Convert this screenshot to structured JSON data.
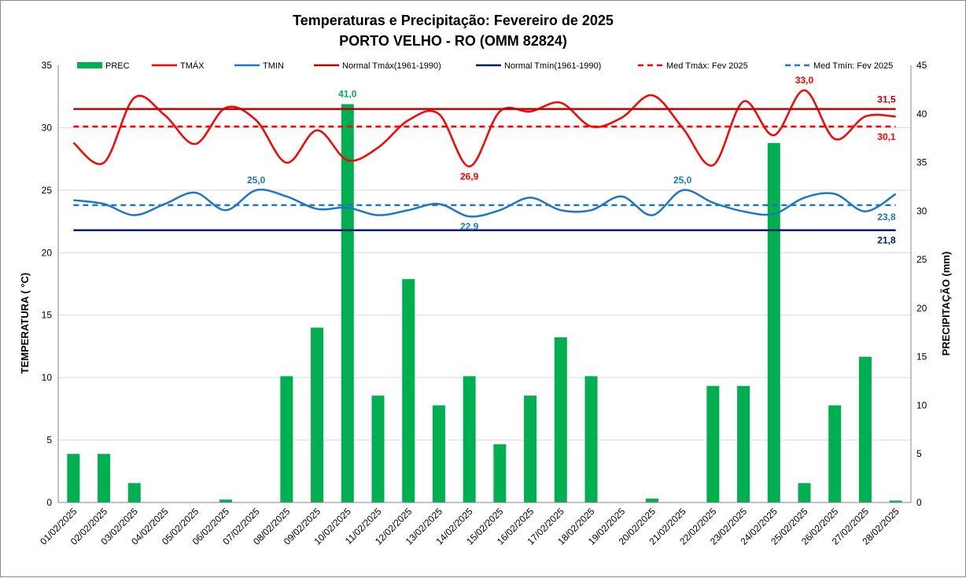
{
  "colors": {
    "prec": "#00b050",
    "tmax": "#ff0000",
    "tmin": "#1f77c2",
    "normal_tmax": "#c00000",
    "normal_tmin": "#002060",
    "med_tmax": "#ff0000",
    "med_tmin": "#1f77c2",
    "grid": "#d9d9d9"
  },
  "chart_data": {
    "type": "bar+line",
    "title": "Temperaturas  e Precipitação: Fevereiro de 2025",
    "subtitle": "PORTO  VELHO - RO (OMM 82824)",
    "ylabel": "TEMPERATURA  ( °C)",
    "y2label": "PRECIPITAÇÃO (mm)",
    "ylim": [
      0,
      35
    ],
    "yticks": [
      "0",
      "5",
      "10",
      "15",
      "20",
      "25",
      "30",
      "35"
    ],
    "y2lim": [
      0,
      45
    ],
    "y2ticks": [
      "0",
      "5",
      "10",
      "15",
      "20",
      "25",
      "30",
      "35",
      "40",
      "45"
    ],
    "categories": [
      "01/02/2025",
      "02/02/2025",
      "03/02/2025",
      "04/02/2025",
      "05/02/2025",
      "06/02/2025",
      "07/02/2025",
      "08/02/2025",
      "09/02/2025",
      "10/02/2025",
      "11/02/2025",
      "12/02/2025",
      "13/02/2025",
      "14/02/2025",
      "15/02/2025",
      "16/02/2025",
      "17/02/2025",
      "18/02/2025",
      "19/02/2025",
      "20/02/2025",
      "21/02/2025",
      "22/02/2025",
      "23/02/2025",
      "24/02/2025",
      "25/02/2025",
      "26/02/2025",
      "27/02/2025",
      "28/02/2025"
    ],
    "series": [
      {
        "name": "PREC",
        "kind": "bar",
        "axis": "right",
        "values": [
          5.0,
          5.0,
          2.0,
          0,
          0,
          0.3,
          0,
          13.0,
          18.0,
          41.0,
          11.0,
          23.0,
          10.0,
          13.0,
          6.0,
          11.0,
          17.0,
          13.0,
          0,
          0.4,
          0,
          12.0,
          12.0,
          37.0,
          2.0,
          10.0,
          15.0,
          0.2
        ]
      },
      {
        "name": "TMÁX",
        "kind": "line",
        "axis": "left",
        "values": [
          28.8,
          27.2,
          32.4,
          31.0,
          28.7,
          31.6,
          30.6,
          27.2,
          29.8,
          27.4,
          28.4,
          30.6,
          31.1,
          26.9,
          31.3,
          31.3,
          32.0,
          30.1,
          30.8,
          32.6,
          30.0,
          27.0,
          32.1,
          29.4,
          33.0,
          29.1,
          30.9,
          30.9
        ]
      },
      {
        "name": "TMIN",
        "kind": "line",
        "axis": "left",
        "values": [
          24.2,
          23.9,
          23.0,
          23.9,
          24.8,
          23.4,
          25.0,
          24.5,
          23.5,
          23.6,
          23.0,
          23.4,
          23.9,
          22.9,
          23.4,
          24.4,
          23.4,
          23.4,
          24.5,
          23.0,
          25.0,
          24.0,
          23.3,
          23.1,
          24.4,
          24.7,
          23.3,
          24.7
        ]
      },
      {
        "name": "Normal Tmáx(1961-1990)",
        "kind": "hline",
        "axis": "left",
        "value": 31.5
      },
      {
        "name": "Normal Tmín(1961-1990)",
        "kind": "hline",
        "axis": "left",
        "value": 21.8
      },
      {
        "name": "Med Tmáx: Fev 2025",
        "kind": "hline-dashed",
        "axis": "left",
        "value": 30.1
      },
      {
        "name": "Med Tmín: Fev 2025",
        "kind": "hline-dashed",
        "axis": "left",
        "value": 23.8
      }
    ],
    "legend": [
      "PREC",
      "TMÁX",
      "TMIN",
      "Normal Tmáx(1961-1990)",
      "Normal Tmín(1961-1990)",
      "Med Tmáx: Fev 2025",
      "Med Tmín: Fev 2025"
    ],
    "legend_position": "top",
    "annotations": [
      {
        "text": "41,0",
        "series": "PREC",
        "index": 9
      },
      {
        "text": "33,0",
        "series": "TMÁX",
        "index": 24
      },
      {
        "text": "26,9",
        "series": "TMÁX",
        "index": 13
      },
      {
        "text": "25,0",
        "series": "TMIN",
        "index": 6
      },
      {
        "text": "25,0",
        "series": "TMIN",
        "index": 20
      },
      {
        "text": "22,9",
        "series": "TMIN",
        "index": 13
      },
      {
        "text": "31,5",
        "series": "Normal Tmáx(1961-1990)"
      },
      {
        "text": "30,1",
        "series": "Med Tmáx: Fev 2025"
      },
      {
        "text": "23,8",
        "series": "Med Tmín: Fev 2025"
      },
      {
        "text": "21,8",
        "series": "Normal Tmín(1961-1990)"
      }
    ]
  }
}
